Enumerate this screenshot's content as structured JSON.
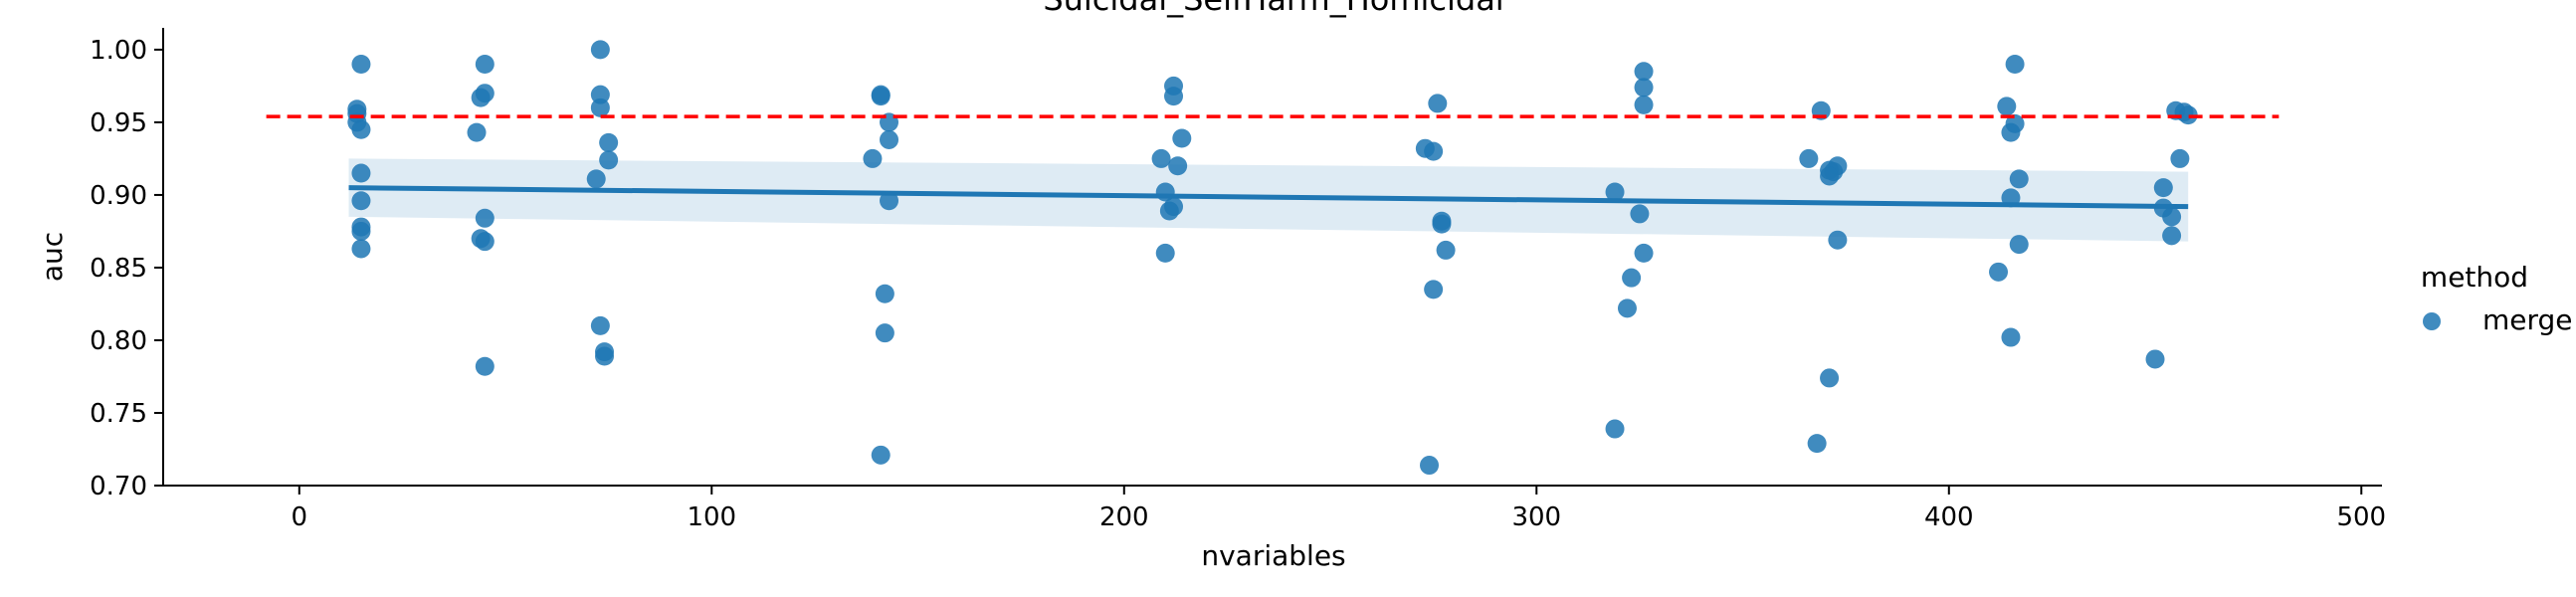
{
  "chart_data": {
    "type": "scatter",
    "title": "Suicidal_SelfHarm_Homicidal",
    "xlabel": "nvariables",
    "ylabel": "auc",
    "xlim": [
      -33,
      505
    ],
    "ylim": [
      0.7,
      1.015
    ],
    "xticks": [
      0,
      100,
      200,
      300,
      400,
      500
    ],
    "yticks": [
      0.7,
      0.75,
      0.8,
      0.85,
      0.9,
      0.95,
      1.0
    ],
    "xtick_labels": [
      "0",
      "100",
      "200",
      "300",
      "400",
      "500"
    ],
    "ytick_labels": [
      "0.70",
      "0.75",
      "0.80",
      "0.85",
      "0.90",
      "0.95",
      "1.00"
    ],
    "grid": false,
    "legend": {
      "title": "method",
      "placement": "right",
      "entries": [
        {
          "label": "merge",
          "color": "#1f77b4"
        }
      ]
    },
    "reference_line": {
      "y": 0.954,
      "x_range": [
        -8,
        480
      ],
      "color": "#ff0000",
      "style": "dashed"
    },
    "regression": {
      "x_range": [
        12,
        458
      ],
      "y_start": 0.905,
      "y_end": 0.892,
      "ci_start": [
        0.885,
        0.925
      ],
      "ci_end": [
        0.868,
        0.916
      ],
      "color": "#1f77b4"
    },
    "series": [
      {
        "name": "merge",
        "color": "#1f77b4",
        "points": [
          [
            15,
            0.99
          ],
          [
            14,
            0.959
          ],
          [
            14,
            0.956
          ],
          [
            14,
            0.95
          ],
          [
            15,
            0.945
          ],
          [
            15,
            0.915
          ],
          [
            15,
            0.896
          ],
          [
            15,
            0.878
          ],
          [
            15,
            0.875
          ],
          [
            15,
            0.863
          ],
          [
            45,
            0.99
          ],
          [
            45,
            0.97
          ],
          [
            44,
            0.967
          ],
          [
            43,
            0.943
          ],
          [
            45,
            0.884
          ],
          [
            44,
            0.87
          ],
          [
            45,
            0.868
          ],
          [
            45,
            0.782
          ],
          [
            73,
            1.0
          ],
          [
            73,
            0.969
          ],
          [
            73,
            0.96
          ],
          [
            75,
            0.936
          ],
          [
            75,
            0.924
          ],
          [
            72,
            0.911
          ],
          [
            73,
            0.81
          ],
          [
            74,
            0.792
          ],
          [
            74,
            0.789
          ],
          [
            141,
            0.969
          ],
          [
            141,
            0.968
          ],
          [
            143,
            0.95
          ],
          [
            143,
            0.938
          ],
          [
            139,
            0.925
          ],
          [
            143,
            0.896
          ],
          [
            142,
            0.832
          ],
          [
            142,
            0.805
          ],
          [
            141,
            0.721
          ],
          [
            212,
            0.975
          ],
          [
            212,
            0.968
          ],
          [
            214,
            0.939
          ],
          [
            209,
            0.925
          ],
          [
            213,
            0.92
          ],
          [
            210,
            0.902
          ],
          [
            212,
            0.892
          ],
          [
            211,
            0.889
          ],
          [
            210,
            0.86
          ],
          [
            276,
            0.963
          ],
          [
            273,
            0.932
          ],
          [
            275,
            0.93
          ],
          [
            277,
            0.882
          ],
          [
            277,
            0.88
          ],
          [
            278,
            0.862
          ],
          [
            275,
            0.835
          ],
          [
            274,
            0.714
          ],
          [
            326,
            0.985
          ],
          [
            326,
            0.974
          ],
          [
            326,
            0.962
          ],
          [
            319,
            0.902
          ],
          [
            325,
            0.887
          ],
          [
            326,
            0.86
          ],
          [
            323,
            0.843
          ],
          [
            322,
            0.822
          ],
          [
            319,
            0.739
          ],
          [
            369,
            0.958
          ],
          [
            366,
            0.925
          ],
          [
            371,
            0.917
          ],
          [
            373,
            0.92
          ],
          [
            372,
            0.916
          ],
          [
            371,
            0.913
          ],
          [
            373,
            0.869
          ],
          [
            371,
            0.774
          ],
          [
            368,
            0.729
          ],
          [
            416,
            0.99
          ],
          [
            414,
            0.961
          ],
          [
            416,
            0.949
          ],
          [
            415,
            0.943
          ],
          [
            417,
            0.911
          ],
          [
            415,
            0.898
          ],
          [
            417,
            0.866
          ],
          [
            412,
            0.847
          ],
          [
            415,
            0.802
          ],
          [
            455,
            0.958
          ],
          [
            457,
            0.957
          ],
          [
            458,
            0.955
          ],
          [
            456,
            0.925
          ],
          [
            452,
            0.905
          ],
          [
            452,
            0.891
          ],
          [
            454,
            0.885
          ],
          [
            454,
            0.872
          ],
          [
            450,
            0.787
          ]
        ]
      }
    ]
  }
}
